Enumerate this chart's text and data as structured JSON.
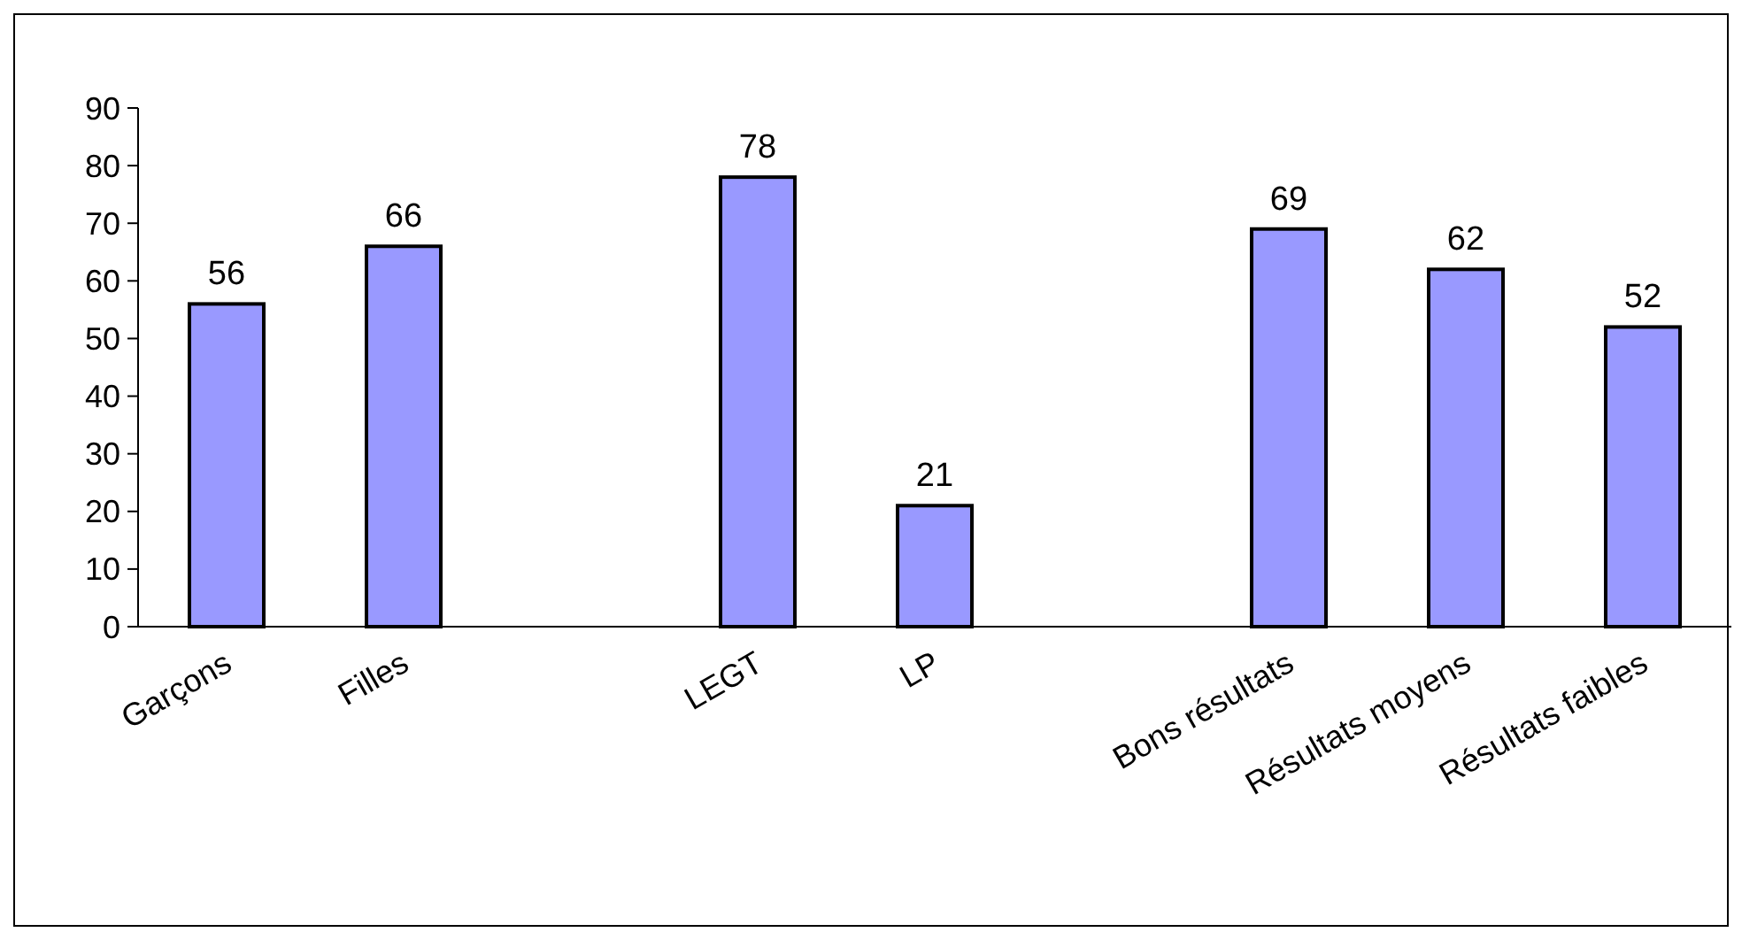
{
  "chart_data": {
    "type": "bar",
    "categories": [
      "Garçons",
      "Filles",
      null,
      "LEGT",
      "LP",
      null,
      "Bons résultats",
      "Résultats moyens",
      "Résultats faibles"
    ],
    "values": [
      56,
      66,
      null,
      78,
      21,
      null,
      69,
      62,
      52
    ],
    "color": "#9999ff",
    "ylim": [
      0,
      90
    ],
    "yticks": [
      0,
      10,
      20,
      30,
      40,
      50,
      60,
      70,
      80,
      90
    ],
    "data_labels": true,
    "grid": false
  }
}
